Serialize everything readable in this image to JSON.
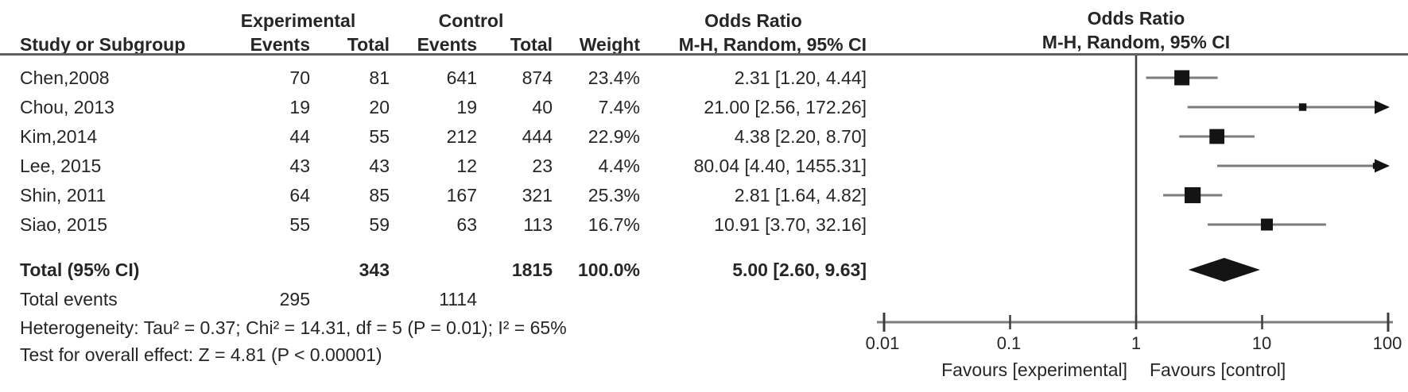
{
  "colors": {
    "text": "#262626",
    "ci_line": "#7c7c7c",
    "marker": "#141414",
    "axis_line": "#7c7c7c",
    "null_line": "#3d3d3d",
    "header_rule": "#5f5f5f"
  },
  "header": {
    "group_experimental": "Experimental",
    "group_control": "Control",
    "group_odds_ratio": "Odds Ratio",
    "col_study": "Study or Subgroup",
    "col_events_exp": "Events",
    "col_total_exp": "Total",
    "col_events_ctrl": "Events",
    "col_total_ctrl": "Total",
    "col_weight": "Weight",
    "col_effect": "M-H, Random, 95% CI",
    "plot_title": "Odds Ratio",
    "plot_subtitle": "M-H, Random, 95% CI"
  },
  "chart_data": {
    "type": "forest",
    "effect_measure": "Odds Ratio",
    "method": "M-H, Random, 95% CI",
    "x_axis": {
      "scale": "log",
      "min": 0.01,
      "max": 100,
      "ticks": [
        0.01,
        0.1,
        1,
        10,
        100
      ],
      "tick_labels": [
        "0.01",
        "0.1",
        "1",
        "10",
        "100"
      ]
    },
    "favours_left": "Favours [experimental]",
    "favours_right": "Favours [control]",
    "studies": [
      {
        "name": "Chen,2008",
        "events_exp": 70,
        "total_exp": 81,
        "events_ctrl": 641,
        "total_ctrl": 874,
        "weight": "23.4%",
        "weight_pct": 23.4,
        "or": 2.31,
        "ci_low": 1.2,
        "ci_high": 4.44,
        "or_text": "2.31 [1.20, 4.44]"
      },
      {
        "name": "Chou, 2013",
        "events_exp": 19,
        "total_exp": 20,
        "events_ctrl": 19,
        "total_ctrl": 40,
        "weight": "7.4%",
        "weight_pct": 7.4,
        "or": 21.0,
        "ci_low": 2.56,
        "ci_high": 172.26,
        "or_text": "21.00 [2.56, 172.26]"
      },
      {
        "name": "Kim,2014",
        "events_exp": 44,
        "total_exp": 55,
        "events_ctrl": 212,
        "total_ctrl": 444,
        "weight": "22.9%",
        "weight_pct": 22.9,
        "or": 4.38,
        "ci_low": 2.2,
        "ci_high": 8.7,
        "or_text": "4.38 [2.20, 8.70]"
      },
      {
        "name": "Lee, 2015",
        "events_exp": 43,
        "total_exp": 43,
        "events_ctrl": 12,
        "total_ctrl": 23,
        "weight": "4.4%",
        "weight_pct": 4.4,
        "or": 80.04,
        "ci_low": 4.4,
        "ci_high": 1455.31,
        "or_text": "80.04 [4.40, 1455.31]"
      },
      {
        "name": "Shin, 2011",
        "events_exp": 64,
        "total_exp": 85,
        "events_ctrl": 167,
        "total_ctrl": 321,
        "weight": "25.3%",
        "weight_pct": 25.3,
        "or": 2.81,
        "ci_low": 1.64,
        "ci_high": 4.82,
        "or_text": "2.81 [1.64, 4.82]"
      },
      {
        "name": "Siao, 2015",
        "events_exp": 55,
        "total_exp": 59,
        "events_ctrl": 63,
        "total_ctrl": 113,
        "weight": "16.7%",
        "weight_pct": 16.7,
        "or": 10.91,
        "ci_low": 3.7,
        "ci_high": 32.16,
        "or_text": "10.91 [3.70, 32.16]"
      }
    ],
    "total": {
      "label": "Total (95% CI)",
      "total_exp": 343,
      "total_ctrl": 1815,
      "weight": "100.0%",
      "or": 5.0,
      "ci_low": 2.6,
      "ci_high": 9.63,
      "or_text": "5.00 [2.60, 9.63]"
    },
    "total_events": {
      "label": "Total events",
      "events_exp": 295,
      "events_ctrl": 1114
    },
    "heterogeneity": "Heterogeneity: Tau² = 0.37; Chi² = 14.31, df = 5 (P = 0.01); I² = 65%",
    "overall_effect": "Test for overall effect: Z = 4.81 (P < 0.00001)"
  }
}
